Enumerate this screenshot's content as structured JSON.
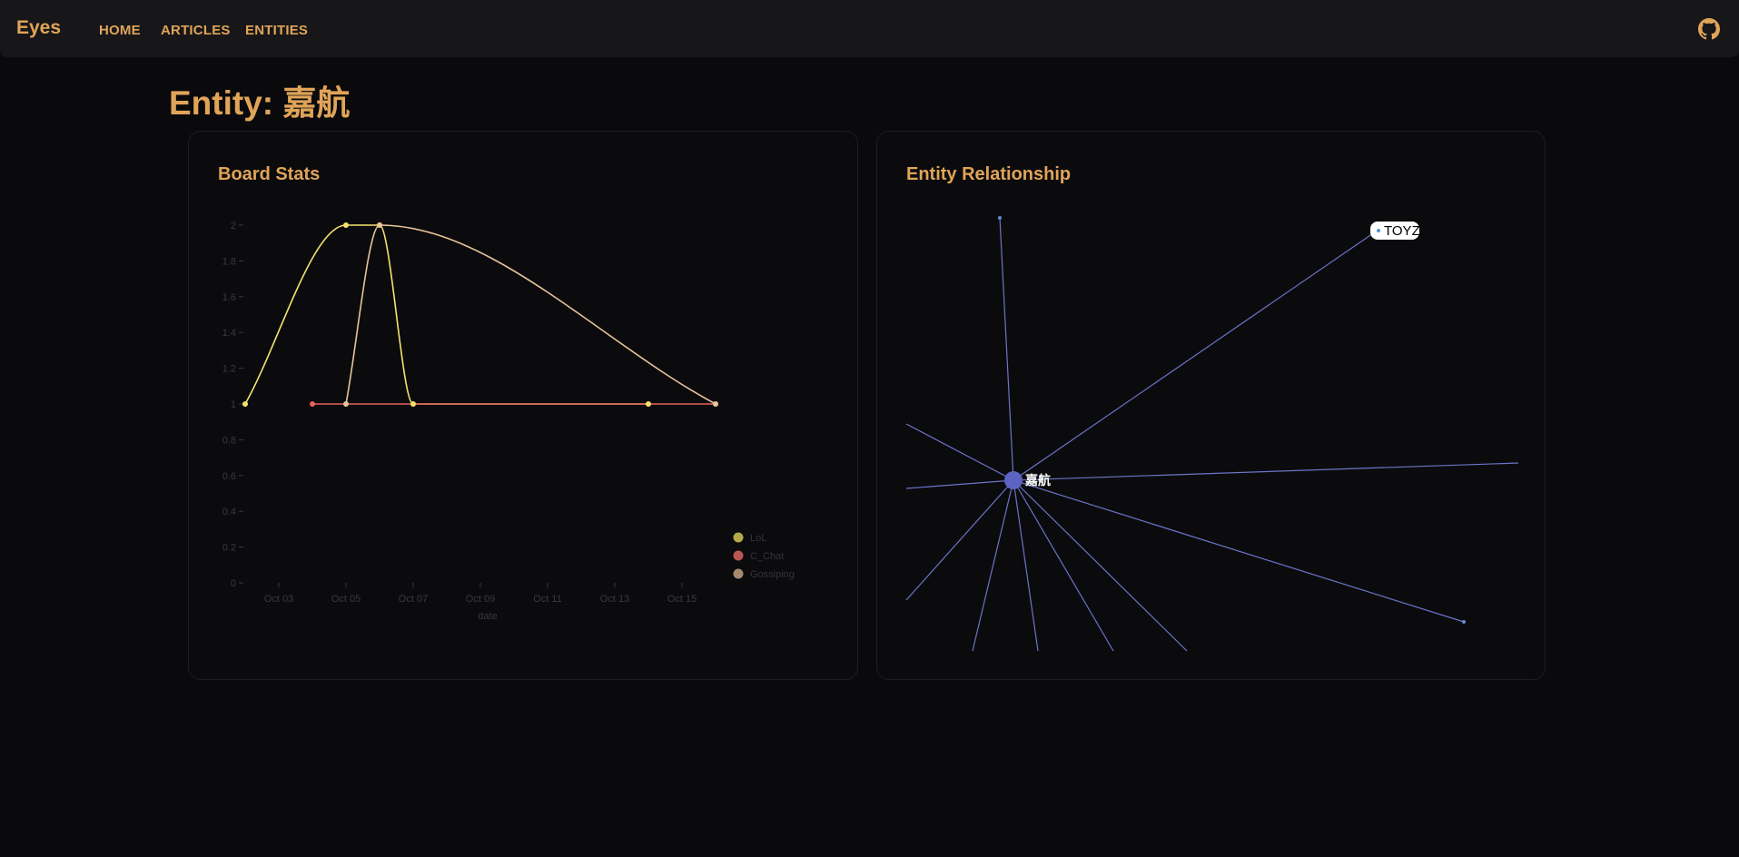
{
  "nav": {
    "brand": "Eyes",
    "links": [
      "HOME",
      "ARTICLES",
      "ENTITIES"
    ],
    "github_icon": "github-icon"
  },
  "page": {
    "title": "Entity: 嘉航"
  },
  "board_stats": {
    "title": "Board Stats",
    "chart_data": {
      "type": "line",
      "title": "",
      "xlabel": "date",
      "ylabel": "",
      "x_ticks": [
        "Oct 03",
        "Oct 05",
        "Oct 07",
        "Oct 09",
        "Oct 11",
        "Oct 13",
        "Oct 15"
      ],
      "y_ticks": [
        "0",
        "0.2",
        "0.4",
        "0.6",
        "0.8",
        "1",
        "1.2",
        "1.4",
        "1.6",
        "1.8",
        "2"
      ],
      "ylim": [
        0,
        2
      ],
      "xlim": [
        "Oct 02",
        "Oct 16"
      ],
      "legend_position": "bottom-right",
      "series": [
        {
          "name": "LoL",
          "color": "#f5e36b",
          "points": [
            [
              "Oct 02",
              1
            ],
            [
              "Oct 05",
              2
            ],
            [
              "Oct 06",
              2
            ],
            [
              "Oct 07",
              1
            ],
            [
              "Oct 14",
              1
            ]
          ]
        },
        {
          "name": "C_Chat",
          "color": "#e8625c",
          "points": [
            [
              "Oct 04",
              1
            ],
            [
              "Oct 16",
              1
            ]
          ]
        },
        {
          "name": "Gossiping",
          "color": "#e8c49a",
          "points": [
            [
              "Oct 05",
              1
            ],
            [
              "Oct 06",
              2
            ],
            [
              "Oct 16",
              1
            ]
          ]
        }
      ]
    }
  },
  "entity_relationship": {
    "title": "Entity Relationship",
    "center_label": "嘉航",
    "highlighted_label": "TOYZ",
    "edge_color": "#6b74c9"
  }
}
